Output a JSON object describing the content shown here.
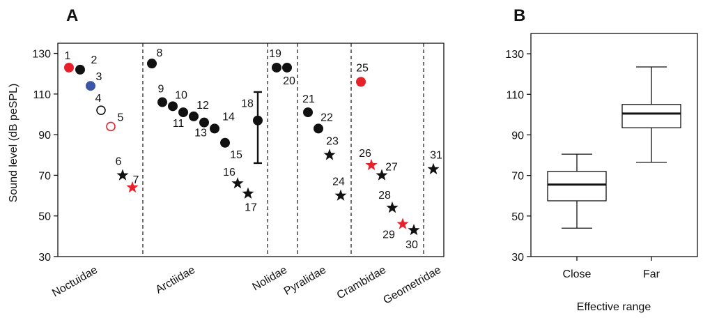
{
  "chart_data": [
    {
      "type": "scatter",
      "panel": "A",
      "ylabel": "Sound level (dB peSPL)",
      "ylim": [
        30,
        135
      ],
      "yticks": [
        30,
        50,
        70,
        90,
        110,
        130
      ],
      "families": [
        {
          "name": "Noctuidae",
          "slots": [
            1,
            7
          ]
        },
        {
          "name": "Arctiidae",
          "slots": [
            8,
            18
          ]
        },
        {
          "name": "Nolidae",
          "slots": [
            19,
            20
          ]
        },
        {
          "name": "Pyralidae",
          "slots": [
            21,
            24
          ]
        },
        {
          "name": "Crambidae",
          "slots": [
            25,
            30
          ]
        },
        {
          "name": "Geometridae",
          "slots": [
            31,
            31
          ]
        }
      ],
      "points": [
        {
          "label": "1",
          "slot": 1,
          "y": 123,
          "marker": "circle",
          "color": "#e8202a",
          "filled": true
        },
        {
          "label": "2",
          "slot": 2,
          "y": 122,
          "marker": "circle",
          "color": "#111111",
          "filled": true
        },
        {
          "label": "3",
          "slot": 3,
          "y": 114,
          "marker": "circle",
          "color": "#3a56a5",
          "filled": true
        },
        {
          "label": "4",
          "slot": 4,
          "y": 102,
          "marker": "circle",
          "color": "#111111",
          "filled": false
        },
        {
          "label": "5",
          "slot": 5,
          "y": 94,
          "marker": "circle",
          "color": "#e8202a",
          "filled": false
        },
        {
          "label": "6",
          "slot": 6,
          "y": 70,
          "marker": "star",
          "color": "#111111",
          "filled": true
        },
        {
          "label": "7",
          "slot": 7,
          "y": 64,
          "marker": "star",
          "color": "#e8202a",
          "filled": true
        },
        {
          "label": "8",
          "slot": 8,
          "y": 125,
          "marker": "circle",
          "color": "#111111",
          "filled": true
        },
        {
          "label": "9",
          "slot": 9,
          "y": 106,
          "marker": "circle",
          "color": "#111111",
          "filled": true
        },
        {
          "label": "10",
          "slot": 10,
          "y": 104,
          "marker": "circle",
          "color": "#111111",
          "filled": true
        },
        {
          "label": "11",
          "slot": 11,
          "y": 101,
          "marker": "circle",
          "color": "#111111",
          "filled": true
        },
        {
          "label": "12",
          "slot": 12,
          "y": 99,
          "marker": "circle",
          "color": "#111111",
          "filled": true
        },
        {
          "label": "13",
          "slot": 13,
          "y": 96,
          "marker": "circle",
          "color": "#111111",
          "filled": true
        },
        {
          "label": "14",
          "slot": 14,
          "y": 93,
          "marker": "circle",
          "color": "#111111",
          "filled": true
        },
        {
          "label": "15",
          "slot": 15,
          "y": 86,
          "marker": "circle",
          "color": "#111111",
          "filled": true
        },
        {
          "label": "16",
          "slot": 16,
          "y": 66,
          "marker": "star",
          "color": "#111111",
          "filled": true
        },
        {
          "label": "17",
          "slot": 17,
          "y": 61,
          "marker": "star",
          "color": "#111111",
          "filled": true
        },
        {
          "label": "18",
          "slot": 18,
          "y": 97,
          "marker": "circle",
          "color": "#111111",
          "filled": true,
          "err": [
            76,
            111
          ]
        },
        {
          "label": "19",
          "slot": 19,
          "y": 123,
          "marker": "circle",
          "color": "#111111",
          "filled": true
        },
        {
          "label": "20",
          "slot": 20,
          "y": 123,
          "marker": "circle",
          "color": "#111111",
          "filled": true
        },
        {
          "label": "21",
          "slot": 21,
          "y": 101,
          "marker": "circle",
          "color": "#111111",
          "filled": true
        },
        {
          "label": "22",
          "slot": 22,
          "y": 93,
          "marker": "circle",
          "color": "#111111",
          "filled": true
        },
        {
          "label": "23",
          "slot": 23,
          "y": 80,
          "marker": "star",
          "color": "#111111",
          "filled": true
        },
        {
          "label": "24",
          "slot": 24,
          "y": 60,
          "marker": "star",
          "color": "#111111",
          "filled": true
        },
        {
          "label": "25",
          "slot": 25,
          "y": 116,
          "marker": "circle",
          "color": "#e8202a",
          "filled": true
        },
        {
          "label": "26",
          "slot": 26,
          "y": 75,
          "marker": "star",
          "color": "#e8202a",
          "filled": true
        },
        {
          "label": "27",
          "slot": 27,
          "y": 70,
          "marker": "star",
          "color": "#111111",
          "filled": true
        },
        {
          "label": "28",
          "slot": 28,
          "y": 54,
          "marker": "star",
          "color": "#111111",
          "filled": true
        },
        {
          "label": "29",
          "slot": 29,
          "y": 46,
          "marker": "star",
          "color": "#e8202a",
          "filled": true
        },
        {
          "label": "30",
          "slot": 30,
          "y": 43,
          "marker": "star",
          "color": "#111111",
          "filled": true
        },
        {
          "label": "31",
          "slot": 31,
          "y": 73,
          "marker": "star",
          "color": "#111111",
          "filled": true
        }
      ]
    },
    {
      "type": "box",
      "panel": "B",
      "xlabel": "Effective range",
      "ylim": [
        30,
        140
      ],
      "yticks": [
        30,
        50,
        70,
        90,
        110,
        130
      ],
      "categories": [
        "Close",
        "Far"
      ],
      "boxes": [
        {
          "category": "Close",
          "min": 44,
          "q1": 57.5,
          "median": 65.5,
          "q3": 72,
          "max": 80.5
        },
        {
          "category": "Far",
          "min": 76.5,
          "q1": 93.5,
          "median": 100.5,
          "q3": 105,
          "max": 123.5
        }
      ]
    }
  ]
}
